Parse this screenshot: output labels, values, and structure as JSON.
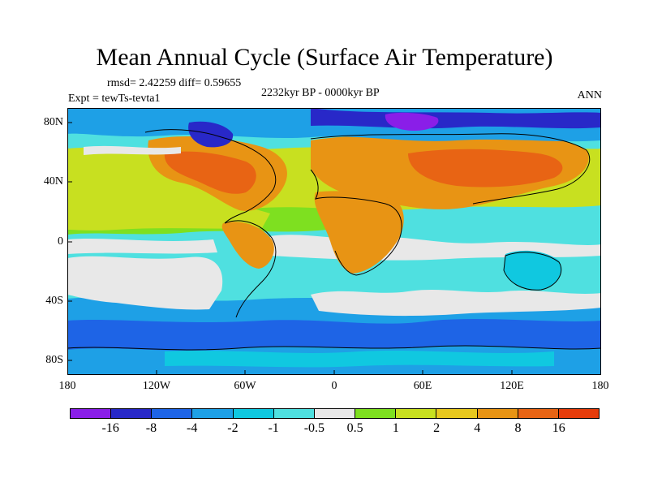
{
  "title": "Mean Annual Cycle (Surface Air Temperature)",
  "stats": "rmsd= 2.42259 diff= 0.59655",
  "experiment": "Expt = tewTs-tevta1",
  "period": "2232kyr BP - 0000kyr BP",
  "season": "ANN",
  "map": {
    "lat_labels": [
      "80N",
      "40N",
      "0",
      "40S",
      "80S"
    ],
    "lon_labels": [
      "180",
      "120W",
      "60W",
      "0",
      "60E",
      "120E",
      "180"
    ],
    "lat_range": [
      -90,
      90
    ],
    "lon_range": [
      -180,
      180
    ]
  },
  "colorbar": {
    "colors": [
      "#8a1ee8",
      "#2828c8",
      "#1e64e6",
      "#1ea0e6",
      "#10c8e0",
      "#4fe0e0",
      "#e8e8e8",
      "#7ee020",
      "#c8e020",
      "#e8c81e",
      "#e89414",
      "#e86414",
      "#e63c0a"
    ],
    "labels": [
      "-16",
      "-8",
      "-4",
      "-2",
      "-1",
      "-0.5",
      "0.5",
      "1",
      "2",
      "4",
      "8",
      "16"
    ]
  }
}
